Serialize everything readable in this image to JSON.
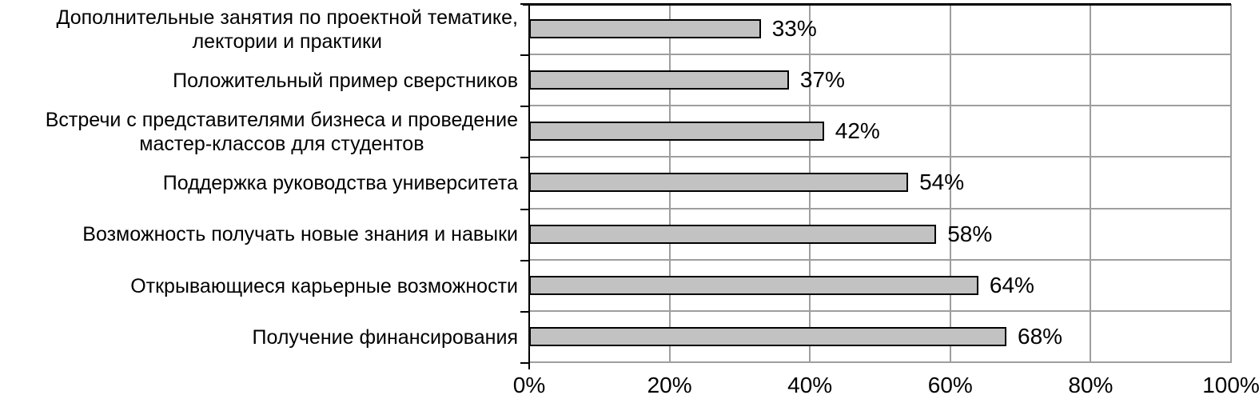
{
  "chart_data": {
    "type": "bar",
    "orientation": "horizontal",
    "title": "",
    "xlabel": "",
    "ylabel": "",
    "categories": [
      "Дополнительные занятия по проектной тематике,\nлектории и практики",
      "Положительный пример сверстников",
      "Встречи с представителями бизнеса и проведение\nмастер-классов для студентов",
      "Поддержка руководства университета",
      "Возможность получать новые знания и навыки",
      "Открывающиеся карьерные возможности",
      "Получение финансирования"
    ],
    "values": [
      33,
      37,
      42,
      54,
      58,
      64,
      68
    ],
    "value_labels": [
      "33%",
      "37%",
      "42%",
      "54%",
      "58%",
      "64%",
      "68%"
    ],
    "xlim": [
      0,
      100
    ],
    "x_tick_step": 20,
    "x_ticks": [
      "0%",
      "20%",
      "40%",
      "60%",
      "80%",
      "100%"
    ],
    "grid": true,
    "legend": "none",
    "bar_fill_color": "#c2c2c2",
    "bar_border_color": "#000000",
    "gridline_color": "#9e9e9e",
    "axis_color": "#000000",
    "text_color": "#000000"
  }
}
